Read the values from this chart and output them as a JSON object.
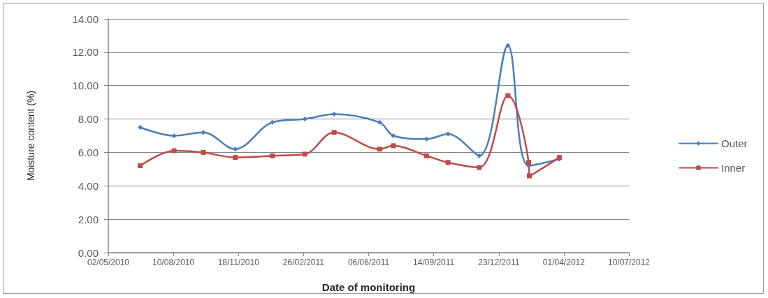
{
  "chart_data": {
    "type": "line",
    "xlabel": "Date of monitoring",
    "ylabel": "Moisture content (%)",
    "series": [
      {
        "name": "Outer",
        "color": "#4a7ebb",
        "marker": "diamond",
        "x": [
          "2010-06-20",
          "2010-08-11",
          "2010-09-25",
          "2010-11-13",
          "2011-01-09",
          "2011-02-28",
          "2011-04-14",
          "2011-06-23",
          "2011-07-14",
          "2011-09-03",
          "2011-10-06",
          "2011-11-23",
          "2012-01-06",
          "2012-02-07",
          "2012-03-25"
        ],
        "values": [
          7.5,
          7.0,
          7.2,
          6.2,
          7.8,
          8.0,
          8.3,
          7.8,
          7.0,
          6.8,
          7.1,
          5.8,
          12.4,
          5.2,
          5.6
        ]
      },
      {
        "name": "Inner",
        "color": "#be4b48",
        "marker": "square",
        "x": [
          "2010-06-20",
          "2010-08-11",
          "2010-09-25",
          "2010-11-13",
          "2011-01-09",
          "2011-02-28",
          "2011-04-14",
          "2011-06-23",
          "2011-07-14",
          "2011-09-03",
          "2011-10-06",
          "2011-11-23",
          "2012-01-06",
          "2012-02-07",
          "2012-02-08",
          "2012-03-25"
        ],
        "values": [
          5.2,
          6.1,
          6.0,
          5.7,
          5.8,
          5.9,
          7.2,
          6.2,
          6.4,
          5.8,
          5.4,
          5.1,
          9.4,
          5.4,
          4.6,
          5.7
        ]
      }
    ],
    "xlim": [
      "2010-05-02",
      "2012-07-10"
    ],
    "xticks": [
      {
        "value": "2010-05-02",
        "label": "02/05/2010"
      },
      {
        "value": "2010-08-10",
        "label": "10/08/2010"
      },
      {
        "value": "2010-11-18",
        "label": "18/11/2010"
      },
      {
        "value": "2011-02-26",
        "label": "26/02/2011"
      },
      {
        "value": "2011-06-06",
        "label": "06/06/2011"
      },
      {
        "value": "2011-09-14",
        "label": "14/09/2011"
      },
      {
        "value": "2011-12-23",
        "label": "23/12/2011"
      },
      {
        "value": "2012-04-01",
        "label": "01/04/2012"
      },
      {
        "value": "2012-07-10",
        "label": "10/07/2012"
      }
    ],
    "ylim": [
      0,
      14
    ],
    "yticks": [
      {
        "value": 0,
        "label": "0.00"
      },
      {
        "value": 2,
        "label": "2.00"
      },
      {
        "value": 4,
        "label": "4.00"
      },
      {
        "value": 6,
        "label": "6.00"
      },
      {
        "value": 8,
        "label": "8.00"
      },
      {
        "value": 10,
        "label": "10.00"
      },
      {
        "value": 12,
        "label": "12.00"
      },
      {
        "value": 14,
        "label": "14.00"
      }
    ],
    "grid": "y",
    "legend": "right",
    "line_style": "solid"
  }
}
